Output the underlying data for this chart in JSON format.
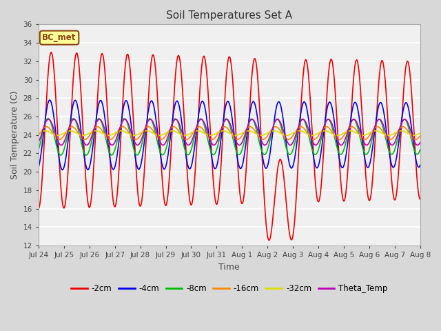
{
  "title": "Soil Temperatures Set A",
  "xlabel": "Time",
  "ylabel": "Soil Temperature (C)",
  "ylim": [
    12,
    36
  ],
  "yticks": [
    12,
    14,
    16,
    18,
    20,
    22,
    24,
    26,
    28,
    30,
    32,
    34,
    36
  ],
  "fig_bg_color": "#d8d8d8",
  "plot_bg_color": "#f0f0f0",
  "grid_color": "#ffffff",
  "annotation_text": "BC_met",
  "annotation_bg": "#ffff99",
  "annotation_border": "#8b4513",
  "series_order": [
    "-2cm",
    "-4cm",
    "-8cm",
    "-16cm",
    "-32cm",
    "Theta_Temp"
  ],
  "series": {
    "-2cm": {
      "color": "#ee0000",
      "amplitude": 8.5,
      "phase": -1.57,
      "mean": 24.5
    },
    "-4cm": {
      "color": "#0000ee",
      "amplitude": 3.8,
      "phase": -1.2,
      "mean": 24.0
    },
    "-8cm": {
      "color": "#00bb00",
      "amplitude": 2.0,
      "phase": -0.8,
      "mean": 23.8
    },
    "-16cm": {
      "color": "#ff8800",
      "amplitude": 0.7,
      "phase": -0.4,
      "mean": 24.2
    },
    "-32cm": {
      "color": "#dddd00",
      "amplitude": 0.25,
      "phase": 0.0,
      "mean": 24.2
    },
    "Theta_Temp": {
      "color": "#bb00bb",
      "amplitude": 1.4,
      "phase": -0.9,
      "mean": 24.3
    }
  },
  "xtick_labels": [
    "Jul 24",
    "Jul 25",
    "Jul 26",
    "Jul 27",
    "Jul 28",
    "Jul 29",
    "Jul 30",
    "Jul 31",
    "Aug 1",
    "Aug 2",
    "Aug 3",
    "Aug 4",
    "Aug 5",
    "Aug 6",
    "Aug 7",
    "Aug 8"
  ],
  "period": 24,
  "duration_hours": 360,
  "n_points": 1440
}
